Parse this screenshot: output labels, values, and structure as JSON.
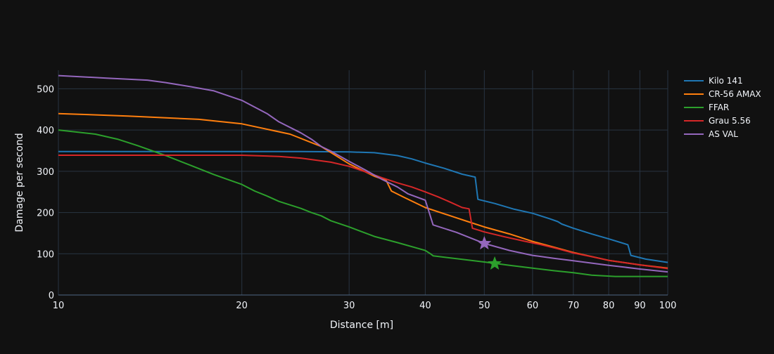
{
  "chart_data": {
    "type": "line",
    "xlabel": "Distance [m]",
    "ylabel": "Damage per second",
    "x_scale": "log",
    "xlim": [
      10,
      100
    ],
    "ylim": [
      0,
      545
    ],
    "x_ticks": [
      {
        "value": 10,
        "label": "10"
      },
      {
        "value": 20,
        "label": "20"
      },
      {
        "value": 30,
        "label": "30"
      },
      {
        "value": 40,
        "label": "40"
      },
      {
        "value": 50,
        "label": "50"
      },
      {
        "value": 60,
        "label": "60"
      },
      {
        "value": 70,
        "label": "70"
      },
      {
        "value": 80,
        "label": "80"
      },
      {
        "value": 90,
        "label": "90"
      },
      {
        "value": 100,
        "label": "100"
      }
    ],
    "y_ticks": [
      {
        "value": 0,
        "label": "0"
      },
      {
        "value": 100,
        "label": "100"
      },
      {
        "value": 200,
        "label": "200"
      },
      {
        "value": 300,
        "label": "300"
      },
      {
        "value": 400,
        "label": "400"
      },
      {
        "value": 500,
        "label": "500"
      }
    ],
    "grid": true,
    "legend_position": "right",
    "series": [
      {
        "name": "Kilo 141",
        "color": "#1f77b4",
        "x": [
          10,
          20,
          25,
          30,
          33,
          36,
          38,
          40,
          43,
          46,
          48.3,
          48.8,
          52,
          56,
          60,
          64,
          66,
          67,
          70,
          75,
          80,
          86,
          87,
          92,
          100
        ],
        "y": [
          348,
          348,
          348,
          347,
          345,
          338,
          330,
          320,
          307,
          293,
          286,
          232,
          222,
          208,
          198,
          185,
          178,
          172,
          162,
          148,
          136,
          122,
          96,
          87,
          79
        ]
      },
      {
        "name": "CR-56 AMAX",
        "color": "#ff7f0e",
        "x": [
          10,
          13,
          17,
          20,
          24,
          27,
          30,
          33,
          34.5,
          35.2,
          37,
          40,
          44,
          47,
          50,
          55,
          60,
          65,
          70,
          80,
          90,
          100
        ],
        "y": [
          440,
          434,
          426,
          415,
          390,
          360,
          318,
          288,
          278,
          252,
          236,
          212,
          192,
          178,
          165,
          148,
          130,
          116,
          103,
          84,
          73,
          65
        ]
      },
      {
        "name": "FFAR",
        "color": "#2ca02c",
        "x": [
          10,
          11.5,
          12.5,
          13.5,
          15,
          16.5,
          18,
          20,
          21,
          22,
          23,
          25,
          26,
          27,
          28,
          30,
          33,
          36,
          40,
          40.8,
          41.2,
          45,
          50,
          55,
          60,
          65,
          70,
          75,
          82,
          100
        ],
        "y": [
          400,
          390,
          378,
          362,
          338,
          314,
          292,
          268,
          252,
          240,
          227,
          210,
          200,
          192,
          180,
          165,
          142,
          127,
          108,
          100,
          95,
          88,
          80,
          72,
          65,
          59,
          54,
          48,
          45,
          45
        ]
      },
      {
        "name": "Grau 5.56",
        "color": "#d62728",
        "x": [
          10,
          15,
          20,
          23,
          25,
          28,
          30,
          32,
          34,
          36,
          38,
          40,
          42,
          44,
          46,
          47.2,
          47.8,
          50,
          54,
          58,
          62,
          66,
          70,
          75,
          80,
          90,
          100
        ],
        "y": [
          339,
          339,
          339,
          336,
          332,
          322,
          312,
          298,
          284,
          272,
          262,
          250,
          238,
          225,
          212,
          209,
          162,
          153,
          141,
          131,
          122,
          112,
          102,
          93,
          84,
          73,
          64
        ]
      },
      {
        "name": "AS VAL",
        "color": "#9467bd",
        "x": [
          10,
          12,
          14,
          15,
          16.5,
          18,
          20,
          22,
          23,
          25,
          26,
          27,
          28,
          30,
          32,
          34,
          36,
          37.5,
          40,
          40.6,
          41.2,
          45,
          50,
          55,
          60,
          65,
          70,
          80,
          90,
          100
        ],
        "y": [
          532,
          526,
          521,
          515,
          505,
          495,
          472,
          440,
          420,
          393,
          378,
          360,
          349,
          324,
          302,
          280,
          262,
          245,
          230,
          200,
          170,
          152,
          125,
          108,
          96,
          89,
          83,
          72,
          63,
          56
        ]
      }
    ],
    "markers": [
      {
        "series": "AS VAL",
        "symbol": "star",
        "color": "#9467bd",
        "x": 50,
        "y": 125
      },
      {
        "series": "FFAR",
        "symbol": "star",
        "color": "#2ca02c",
        "x": 52,
        "y": 76
      }
    ]
  }
}
